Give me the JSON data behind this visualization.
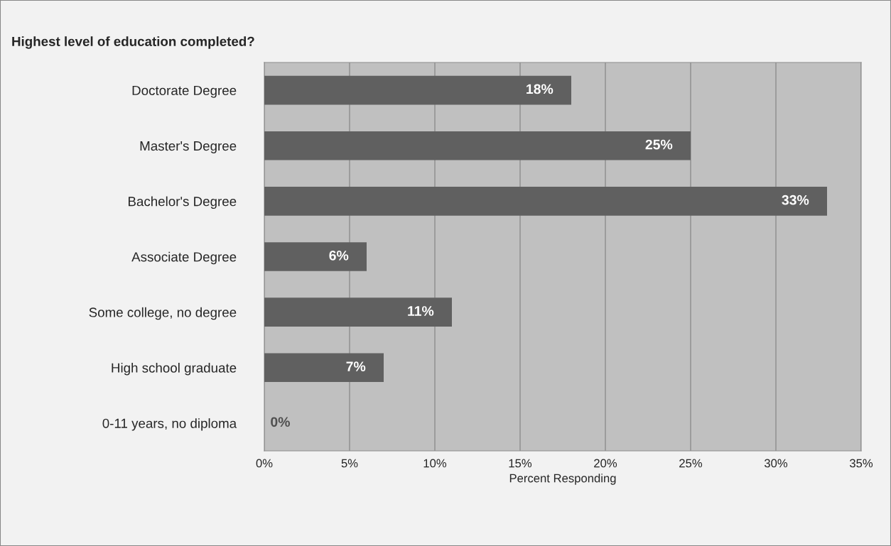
{
  "chart_data": {
    "type": "bar",
    "orientation": "horizontal",
    "title": "Highest level of education completed?",
    "xlabel": "Percent Responding",
    "categories": [
      "Doctorate Degree",
      "Master's Degree",
      "Bachelor's Degree",
      "Associate Degree",
      "Some college, no degree",
      "High school graduate",
      "0-11 years, no diploma"
    ],
    "values": [
      18,
      25,
      33,
      6,
      11,
      7,
      0
    ],
    "value_labels": [
      "18%",
      "25%",
      "33%",
      "6%",
      "11%",
      "7%",
      "0%"
    ],
    "color": "#606060",
    "xlim": [
      0,
      35
    ],
    "xticks": [
      {
        "value": 0,
        "label": "0%"
      },
      {
        "value": 5,
        "label": "5%"
      },
      {
        "value": 10,
        "label": "10%"
      },
      {
        "value": 15,
        "label": "15%"
      },
      {
        "value": 20,
        "label": "20%"
      },
      {
        "value": 25,
        "label": "25%"
      },
      {
        "value": 30,
        "label": "30%"
      },
      {
        "value": 35,
        "label": "35%"
      }
    ],
    "grid": "x",
    "legend": false
  }
}
